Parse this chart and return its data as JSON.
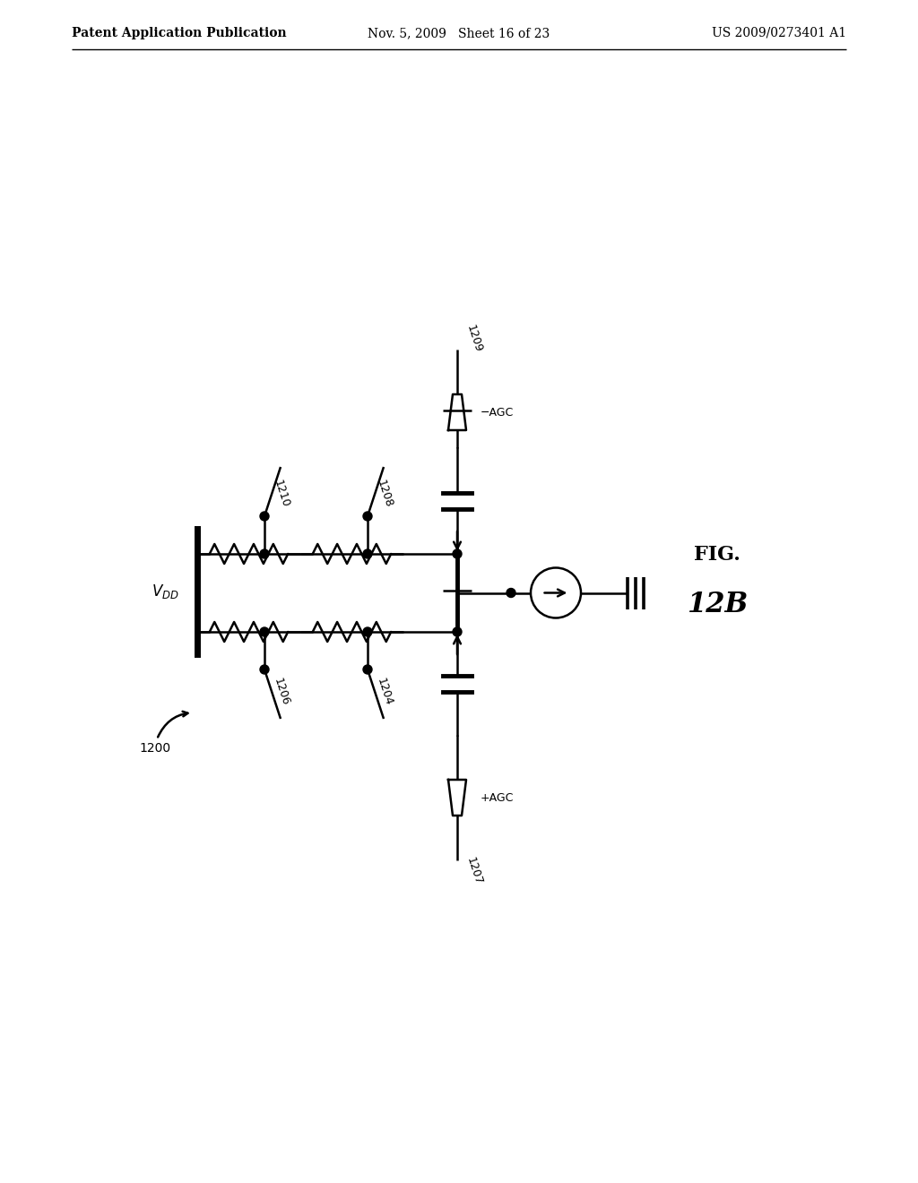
{
  "header_left": "Patent Application Publication",
  "header_mid": "Nov. 5, 2009   Sheet 16 of 23",
  "header_right": "US 2009/0273401 A1",
  "bg_color": "#ffffff",
  "line_color": "#000000"
}
